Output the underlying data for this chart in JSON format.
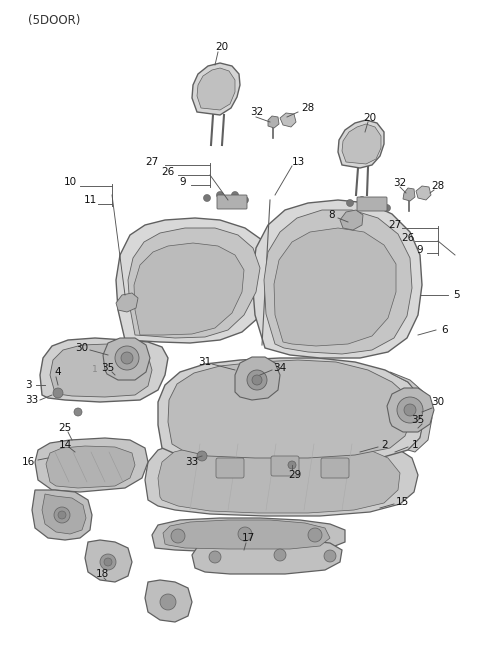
{
  "title": "(5DOOR)",
  "bg_color": "#ffffff",
  "line_color": "#606060",
  "label_color": "#111111",
  "fig_w": 4.8,
  "fig_h": 6.55,
  "dpi": 100
}
